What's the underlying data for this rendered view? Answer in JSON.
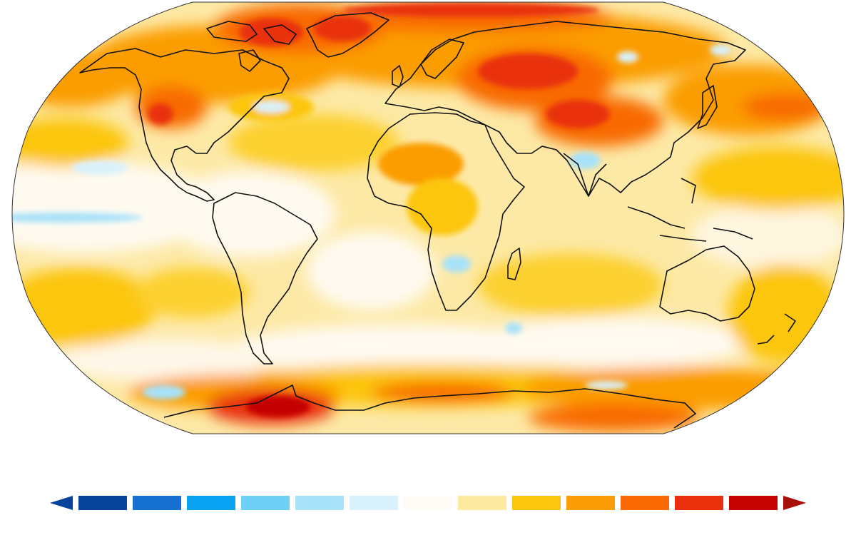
{
  "map": {
    "projection": "robinson",
    "kind": "temperature-anomaly-choropleth",
    "ocean_base_color": "#fde9a6",
    "outline_color": "#111111"
  },
  "legend": {
    "swatch_colors": [
      "#08439b",
      "#1670cf",
      "#0aa4f2",
      "#6fd0f7",
      "#a7e2f9",
      "#d9f1fc",
      "#fffcf5",
      "#fdeaa0",
      "#fcc60c",
      "#fb9d06",
      "#f86b04",
      "#e9300d",
      "#c50402"
    ],
    "arrow_low_color": "#08439b",
    "arrow_high_color": "#a80e0a",
    "tick_labels": []
  }
}
